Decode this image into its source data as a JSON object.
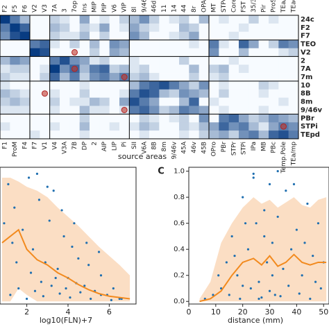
{
  "chart_data": [
    {
      "type": "heatmap",
      "xlabel": "source areas",
      "vmax": 9,
      "row_labels": [
        "24c",
        "F2",
        "F7",
        "TEO",
        "V2",
        "2",
        "7A",
        "7m",
        "10",
        "8B",
        "8m",
        "9/46v",
        "PBr",
        "STPi",
        "TEpd"
      ],
      "row_colors": [
        "#2a6fb5",
        "#c07a20",
        "#c07a20",
        "#8b1a1a",
        "#b22222",
        "#8a5fc0",
        "#8a5fc0",
        "#8a5fc0",
        "#8b5a2b",
        "#8b5a2b",
        "#8b5a2b",
        "#8b5a2b",
        "#d45fb5",
        "#d45fb5",
        "#d45fb5"
      ],
      "top_labels": [
        "F2",
        "F5",
        "F6",
        "V2",
        "V3",
        "7A",
        "3",
        "7op",
        "Ins",
        "MIP",
        "PIP",
        "V6",
        "VIP",
        "8l",
        "9/46d",
        "46d",
        "11",
        "14",
        "44",
        "8r",
        "OPAl",
        "MT",
        "STPc",
        "Core",
        "FST",
        "35/36",
        "Pir",
        "ProSt",
        "TEa/m",
        "TEad"
      ],
      "top_colors": [
        "#c07a20",
        "#c07a20",
        "#c07a20",
        "#b22222",
        "#b22222",
        "#8a5fc0",
        "#8a5fc0",
        "#8a5fc0",
        "#8a5fc0",
        "#8a5fc0",
        "#8a5fc0",
        "#8a5fc0",
        "#8a5fc0",
        "#8b5a2b",
        "#8b5a2b",
        "#8b5a2b",
        "#8b5a2b",
        "#8b5a2b",
        "#8b5a2b",
        "#8b5a2b",
        "#8b5a2b",
        "#d45fb5",
        "#d45fb5",
        "#d45fb5",
        "#d45fb5",
        "#d45fb5",
        "#d45fb5",
        "#d45fb5",
        "#d45fb5",
        "#d45fb5"
      ],
      "bottom_labels": [
        "F1",
        "ProM",
        "F4",
        "F7",
        "V1",
        "V4",
        "V3A",
        "7B",
        "DP",
        "2",
        "AIP",
        "LIP",
        "Pi",
        "SII",
        "V6A",
        "8B",
        "8m",
        "9/46v",
        "45A",
        "46v",
        "45B",
        "OPro",
        "PBr",
        "STPr",
        "STPi",
        "IPa",
        "MB",
        "PBc",
        "Temp.Pole",
        "TEa/mp"
      ],
      "bottom_colors": [
        "#c07a20",
        "#c07a20",
        "#c07a20",
        "#c07a20",
        "#b22222",
        "#b22222",
        "#b22222",
        "#8a5fc0",
        "#8a5fc0",
        "#8a5fc0",
        "#8a5fc0",
        "#8a5fc0",
        "#8a5fc0",
        "#8a5fc0",
        "#8a5fc0",
        "#8b5a2b",
        "#8b5a2b",
        "#8b5a2b",
        "#8b5a2b",
        "#8b5a2b",
        "#8b5a2b",
        "#8b5a2b",
        "#d45fb5",
        "#d45fb5",
        "#d45fb5",
        "#d45fb5",
        "#d45fb5",
        "#d45fb5",
        "#d45fb5",
        "#d45fb5"
      ],
      "values": [
        [
          9,
          6,
          3,
          0,
          0,
          2,
          1,
          0,
          4,
          0,
          1,
          0,
          2,
          3,
          5,
          2,
          0,
          1,
          2,
          0,
          3,
          0,
          1,
          0,
          0,
          2,
          0,
          1,
          0,
          0
        ],
        [
          6,
          9,
          7,
          0,
          0,
          3,
          2,
          0,
          2,
          1,
          4,
          0,
          1,
          4,
          2,
          1,
          0,
          0,
          3,
          2,
          0,
          0,
          0,
          0,
          1,
          0,
          0,
          0,
          0,
          0
        ],
        [
          5,
          8,
          9,
          0,
          0,
          2,
          1,
          1,
          3,
          0,
          2,
          0,
          0,
          5,
          3,
          0,
          0,
          1,
          2,
          4,
          0,
          0,
          0,
          1,
          0,
          0,
          0,
          0,
          0,
          0
        ],
        [
          0,
          0,
          0,
          6,
          7,
          1,
          0,
          2,
          0,
          3,
          0,
          5,
          4,
          0,
          0,
          0,
          0,
          0,
          0,
          1,
          0,
          6,
          1,
          0,
          7,
          4,
          0,
          2,
          6,
          5
        ],
        [
          0,
          0,
          0,
          9,
          8,
          0,
          0,
          0,
          0,
          2,
          0,
          4,
          3,
          0,
          0,
          0,
          0,
          0,
          0,
          0,
          0,
          5,
          0,
          0,
          3,
          0,
          0,
          0,
          1,
          2
        ],
        [
          3,
          5,
          4,
          0,
          0,
          6,
          8,
          5,
          4,
          1,
          2,
          0,
          0,
          1,
          0,
          0,
          0,
          0,
          2,
          0,
          0,
          0,
          0,
          1,
          0,
          0,
          0,
          0,
          0,
          0
        ],
        [
          1,
          2,
          2,
          0,
          1,
          9,
          5,
          7,
          3,
          6,
          7,
          2,
          3,
          1,
          2,
          0,
          0,
          0,
          0,
          3,
          0,
          2,
          3,
          0,
          1,
          0,
          0,
          0,
          0,
          0
        ],
        [
          2,
          1,
          1,
          0,
          2,
          7,
          3,
          6,
          2,
          5,
          6,
          4,
          6,
          2,
          3,
          1,
          0,
          0,
          0,
          2,
          0,
          1,
          2,
          0,
          0,
          0,
          0,
          0,
          0,
          0
        ],
        [
          1,
          0,
          0,
          0,
          0,
          0,
          0,
          0,
          1,
          0,
          0,
          0,
          0,
          3,
          6,
          7,
          8,
          6,
          4,
          2,
          5,
          0,
          1,
          0,
          0,
          0,
          2,
          1,
          0,
          0
        ],
        [
          3,
          2,
          1,
          0,
          0,
          1,
          0,
          0,
          2,
          0,
          0,
          0,
          1,
          6,
          8,
          7,
          3,
          2,
          5,
          4,
          3,
          0,
          2,
          0,
          0,
          0,
          1,
          0,
          0,
          0
        ],
        [
          2,
          3,
          2,
          0,
          0,
          2,
          0,
          1,
          1,
          3,
          2,
          0,
          4,
          8,
          6,
          4,
          0,
          0,
          3,
          7,
          0,
          1,
          0,
          0,
          0,
          0,
          0,
          0,
          1,
          0
        ],
        [
          1,
          1,
          1,
          0,
          0,
          1,
          0,
          0,
          3,
          1,
          1,
          0,
          1,
          6,
          7,
          5,
          2,
          3,
          6,
          5,
          4,
          0,
          1,
          0,
          0,
          0,
          1,
          0,
          0,
          0
        ],
        [
          0,
          0,
          0,
          0,
          0,
          0,
          0,
          0,
          2,
          0,
          0,
          0,
          0,
          0,
          2,
          1,
          0,
          1,
          2,
          0,
          5,
          0,
          6,
          7,
          4,
          2,
          3,
          5,
          4,
          3
        ],
        [
          1,
          0,
          0,
          0,
          0,
          1,
          0,
          0,
          3,
          0,
          0,
          1,
          0,
          1,
          3,
          2,
          0,
          0,
          2,
          1,
          3,
          4,
          7,
          5,
          6,
          3,
          1,
          4,
          6,
          5
        ],
        [
          0,
          0,
          0,
          1,
          0,
          0,
          0,
          0,
          1,
          0,
          0,
          0,
          0,
          0,
          1,
          0,
          0,
          0,
          1,
          0,
          2,
          3,
          4,
          2,
          5,
          6,
          3,
          7,
          8,
          6
        ]
      ]
    },
    {
      "type": "scatter",
      "xlabel": "log10(FLN)+7",
      "xlim": [
        0.7,
        7.3
      ],
      "ylim": [
        -0.02,
        1.03
      ],
      "xticks": [
        2,
        4,
        6
      ],
      "points": {
        "color": "#1f6fb0",
        "x": [
          1.1,
          1.4,
          1.8,
          2.1,
          2.3,
          2.6,
          2.9,
          3.1,
          3.3,
          3.5,
          3.8,
          4.0,
          4.2,
          4.5,
          4.8,
          5.0,
          5.3,
          5.6,
          5.9,
          6.2,
          6.5,
          1.2,
          1.6,
          2.0,
          2.4,
          2.8,
          3.2,
          3.6,
          4.1,
          4.6,
          5.1,
          5.6,
          6.1,
          6.6,
          1.5,
          2.2,
          2.7,
          3.4,
          3.9,
          4.4,
          0.9,
          1.3,
          2.5,
          3.0,
          3.7,
          4.3,
          4.9,
          5.5
        ],
        "y": [
          0.9,
          0.72,
          0.55,
          0.95,
          0.4,
          0.78,
          0.3,
          0.62,
          0.85,
          0.25,
          0.5,
          0.18,
          0.42,
          0.33,
          0.12,
          0.28,
          0.08,
          0.2,
          0.05,
          0.1,
          0.02,
          0.05,
          0.1,
          0.02,
          0.08,
          0.04,
          0.12,
          0.06,
          0.03,
          0.07,
          0.02,
          0.05,
          0.01,
          0.02,
          0.3,
          0.22,
          0.15,
          0.18,
          0.1,
          0.14,
          0.6,
          0.45,
          0.98,
          0.88,
          0.7,
          0.6,
          0.45,
          0.38
        ]
      },
      "mean": {
        "color": "#f28a1e",
        "x": [
          0.8,
          1.2,
          1.6,
          2.0,
          2.5,
          3.0,
          3.5,
          4.0,
          4.5,
          5.0,
          5.5,
          6.0,
          6.5,
          7.0
        ],
        "values": [
          0.45,
          0.5,
          0.55,
          0.4,
          0.32,
          0.28,
          0.22,
          0.18,
          0.13,
          0.09,
          0.06,
          0.04,
          0.03,
          0.02
        ]
      },
      "band": {
        "color": "#fad6b5",
        "x": [
          0.8,
          1.2,
          1.6,
          2.0,
          2.5,
          3.0,
          3.5,
          4.0,
          4.5,
          5.0,
          5.5,
          6.0,
          6.5,
          7.0
        ],
        "upper": [
          0.95,
          0.95,
          0.92,
          0.88,
          0.85,
          0.8,
          0.72,
          0.65,
          0.58,
          0.5,
          0.42,
          0.35,
          0.28,
          0.2
        ],
        "lower": [
          0,
          0,
          0.1,
          0.05,
          0,
          0,
          0,
          0,
          0,
          0,
          0,
          0,
          0,
          0
        ]
      }
    },
    {
      "type": "scatter",
      "panel": "C",
      "xlabel": "distance (mm)",
      "xlim": [
        0,
        52
      ],
      "ylim": [
        -0.02,
        1.03
      ],
      "xticks": [
        0,
        10,
        20,
        30,
        40,
        50
      ],
      "yticks": [
        {
          "value": 0,
          "label": "0.0"
        },
        {
          "value": 0.2,
          "label": "0.2"
        },
        {
          "value": 0.4,
          "label": "0.4"
        },
        {
          "value": 0.6,
          "label": "0.6"
        },
        {
          "value": 0.8,
          "label": "0.8"
        },
        {
          "value": 1,
          "label": "1.0"
        }
      ],
      "points": {
        "color": "#1f6fb0",
        "x": [
          6,
          9,
          12,
          14,
          16,
          18,
          20,
          22,
          24,
          25,
          26,
          28,
          29,
          30,
          31,
          32,
          33,
          35,
          36,
          38,
          40,
          42,
          44,
          46,
          48,
          50,
          15,
          19,
          23,
          27,
          30,
          34,
          37,
          41,
          45,
          49,
          11,
          17,
          21,
          24,
          28,
          33,
          39,
          43,
          47,
          20,
          26,
          31
        ],
        "y": [
          0.02,
          0.05,
          0.1,
          0.3,
          0.5,
          0.2,
          0.8,
          0.4,
          0.95,
          0.6,
          0.15,
          0.7,
          0.3,
          0.9,
          0.45,
          0.05,
          0.65,
          0.25,
          0.85,
          0.4,
          0.55,
          0.2,
          0.75,
          0.35,
          0.6,
          0.3,
          0.05,
          0.02,
          0.1,
          0.03,
          0.08,
          0.04,
          0.12,
          0.06,
          0.02,
          0.1,
          0.2,
          0.35,
          0.6,
          0.98,
          0.5,
          1.0,
          0.9,
          0.45,
          0.15,
          0.12,
          0.02,
          0.2
        ]
      },
      "mean": {
        "color": "#f28a1e",
        "x": [
          4,
          8,
          12,
          16,
          20,
          24,
          27,
          30,
          33,
          36,
          39,
          42,
          45,
          48,
          51
        ],
        "values": [
          0,
          0.02,
          0.08,
          0.2,
          0.3,
          0.33,
          0.28,
          0.35,
          0.27,
          0.3,
          0.36,
          0.3,
          0.28,
          0.3,
          0.3
        ]
      },
      "band": {
        "color": "#fad6b5",
        "x": [
          4,
          8,
          12,
          16,
          20,
          24,
          27,
          30,
          33,
          36,
          39,
          42,
          45,
          48,
          51
        ],
        "upper": [
          0.02,
          0.15,
          0.45,
          0.6,
          0.72,
          0.8,
          0.75,
          0.78,
          0.72,
          0.76,
          0.8,
          0.74,
          0.72,
          0.78,
          0.8
        ],
        "lower": [
          0,
          0,
          0,
          0,
          0,
          0,
          0,
          0,
          0,
          0,
          0,
          0,
          0,
          0,
          0
        ]
      }
    }
  ]
}
